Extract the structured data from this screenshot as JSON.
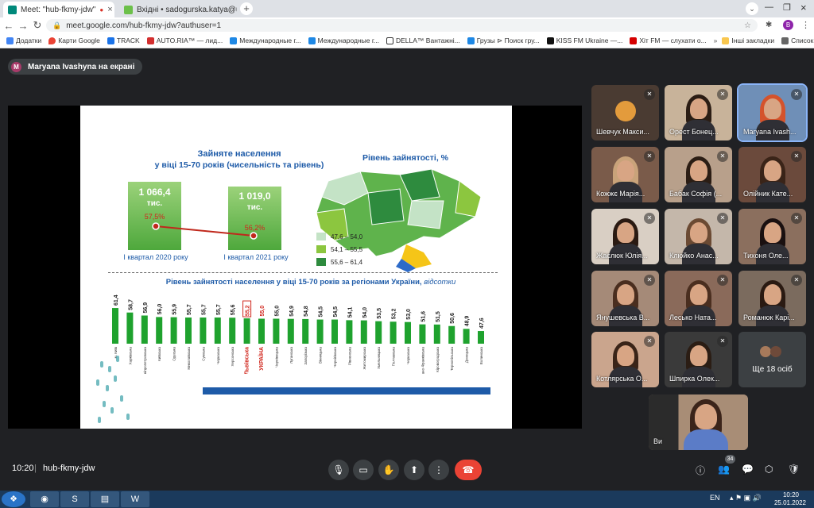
{
  "browser": {
    "tabs": [
      {
        "title": "Meet: \"hub-fkmy-jdw\"",
        "active": true
      },
      {
        "title": "Вхідні • sadogurska.katya@ukr.n",
        "active": false
      }
    ],
    "url": "meet.google.com/hub-fkmy-jdw?authuser=1",
    "profile_initial": "B",
    "bookmarks": [
      "Додатки",
      "Карти Google",
      "TRACK",
      "AUTO.RIA™ — лид...",
      "Международные г...",
      "Международные г...",
      "DELLA™ Вантажні...",
      "Грузы ⊳ Поиск гру...",
      "KISS FM Ukraine —...",
      "Хіт FM — слухати о...",
      "Інші закладки",
      "Список читання"
    ]
  },
  "meet": {
    "presenting_initial": "M",
    "presenting_text": "Maryana Ivashyna на екрані",
    "time": "10:20",
    "meeting_code": "hub-fkmy-jdw",
    "participants_badge": "34",
    "participants": [
      {
        "name": "Шевчук Макси..."
      },
      {
        "name": "Орест Бонец..."
      },
      {
        "name": "Maryana Ivash..."
      },
      {
        "name": "Кожжє Марія..."
      },
      {
        "name": "Бабак Софія (..."
      },
      {
        "name": "Олійник Кате..."
      },
      {
        "name": "Жаєлюк Юлія..."
      },
      {
        "name": "Клюйко Анас..."
      },
      {
        "name": "Тихоня Оле..."
      },
      {
        "name": "Янушевська В..."
      },
      {
        "name": "Лесько Ната..."
      },
      {
        "name": "Романюк Карі..."
      },
      {
        "name": "Котлярська О..."
      },
      {
        "name": "Шпирка Олек..."
      }
    ],
    "more_text": "Ще 18 осіб",
    "self_label": "Ви"
  },
  "slide": {
    "top_title_1": "Зайняте населення",
    "top_title_2": "у віці 15-70 років (чисельність та рівень)",
    "map_title": "Рівень зайнятості, %",
    "bar1_value": "1 066,4",
    "bar1_unit": "тис.",
    "bar1_pct": "57,5%",
    "bar1_label": "І квартал 2020 року",
    "bar2_value": "1 019,0",
    "bar2_unit": "тис.",
    "bar2_pct": "56,2%",
    "bar2_label": "І квартал 2021 року",
    "legend": [
      {
        "label": "47,6 – 54,0",
        "color": "#c4e3c6"
      },
      {
        "label": "54,1 – 55,5",
        "color": "#8cc63f"
      },
      {
        "label": "55,6 – 61,4",
        "color": "#2e8b3e"
      }
    ]
  },
  "chart_data": {
    "type": "bar",
    "title": "Рівень зайнятості населення у віці 15-70 років за регіонами України,",
    "title_unit": "відсотки",
    "categories": [
      "м. Київ",
      "Харківська",
      "Дніпропетровська",
      "Київська",
      "Одеська",
      "Миколаївська",
      "Сумська",
      "Черкаська",
      "Херсонська",
      "Львівська",
      "УКРАЇНА",
      "Чернівецька",
      "Луганська",
      "Запорізька",
      "Вінницька",
      "Чернігівська",
      "Рівненська",
      "Житомирська",
      "Хмельницька",
      "Полтавська",
      "Черкаська",
      "Івано-Франківська",
      "Кіровоградська",
      "Тернопільська",
      "Донецька",
      "Волинська"
    ],
    "values": [
      61.4,
      58.7,
      56.9,
      56.0,
      55.9,
      55.7,
      55.7,
      55.7,
      55.6,
      55.2,
      55.0,
      55.0,
      54.9,
      54.8,
      54.5,
      54.5,
      54.1,
      54.0,
      53.5,
      53.2,
      53.0,
      51.6,
      51.5,
      50.6,
      48.9,
      47.6
    ],
    "value_labels": [
      "61,4",
      "58,7",
      "56,9",
      "56,0",
      "55,9",
      "55,7",
      "55,7",
      "55,7",
      "55,6",
      "55,2",
      "55,0",
      "55,0",
      "54,9",
      "54,8",
      "54,5",
      "54,5",
      "54,1",
      "54,0",
      "53,5",
      "53,2",
      "53,0",
      "51,6",
      "51,5",
      "50,6",
      "48,9",
      "47,6"
    ],
    "highlight": [
      "Львівська",
      "УКРАЇНА"
    ],
    "colors": {
      "bar": "#1fa22e",
      "highlight_text": "#d0261c",
      "title": "#1e5ba8"
    }
  },
  "system": {
    "lang": "EN",
    "time": "10:20",
    "date": "25.01.2022"
  }
}
